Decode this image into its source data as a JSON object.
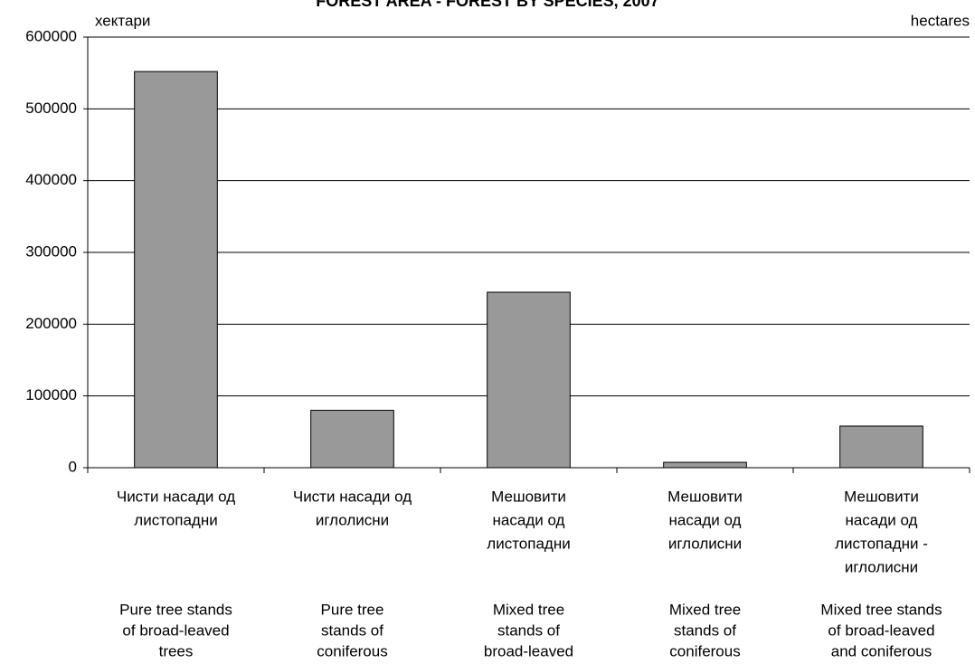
{
  "chart_data": {
    "type": "bar",
    "title": "FOREST AREA - FOREST BY SPECIES, 2007",
    "y_unit_left": "хектари",
    "y_unit_right": "hectares",
    "categories": [
      [
        "Чисти насади од",
        "листопадни"
      ],
      [
        "Чисти насади од",
        "иглолисни"
      ],
      [
        "Мешовити",
        "насади од",
        "листопадни"
      ],
      [
        "Мешовити",
        "насади од",
        "иглолисни"
      ],
      [
        "Мешовити",
        "насади од",
        "листопадни -",
        "иглолисни"
      ]
    ],
    "categories_en": [
      [
        "Pure tree stands",
        "of broad-leaved",
        "trees"
      ],
      [
        "Pure tree",
        "stands of",
        "coniferous"
      ],
      [
        "Mixed tree",
        "stands of",
        "broad-leaved"
      ],
      [
        "Mixed tree",
        "stands of",
        "coniferous"
      ],
      [
        "Mixed tree stands",
        "of broad-leaved",
        "and coniferous"
      ]
    ],
    "values": [
      552000,
      80000,
      244500,
      7500,
      58000
    ],
    "color": "#999999",
    "ylim": [
      0,
      600000
    ],
    "yticks": [
      0,
      100000,
      200000,
      300000,
      400000,
      500000,
      600000
    ],
    "grid": true
  }
}
